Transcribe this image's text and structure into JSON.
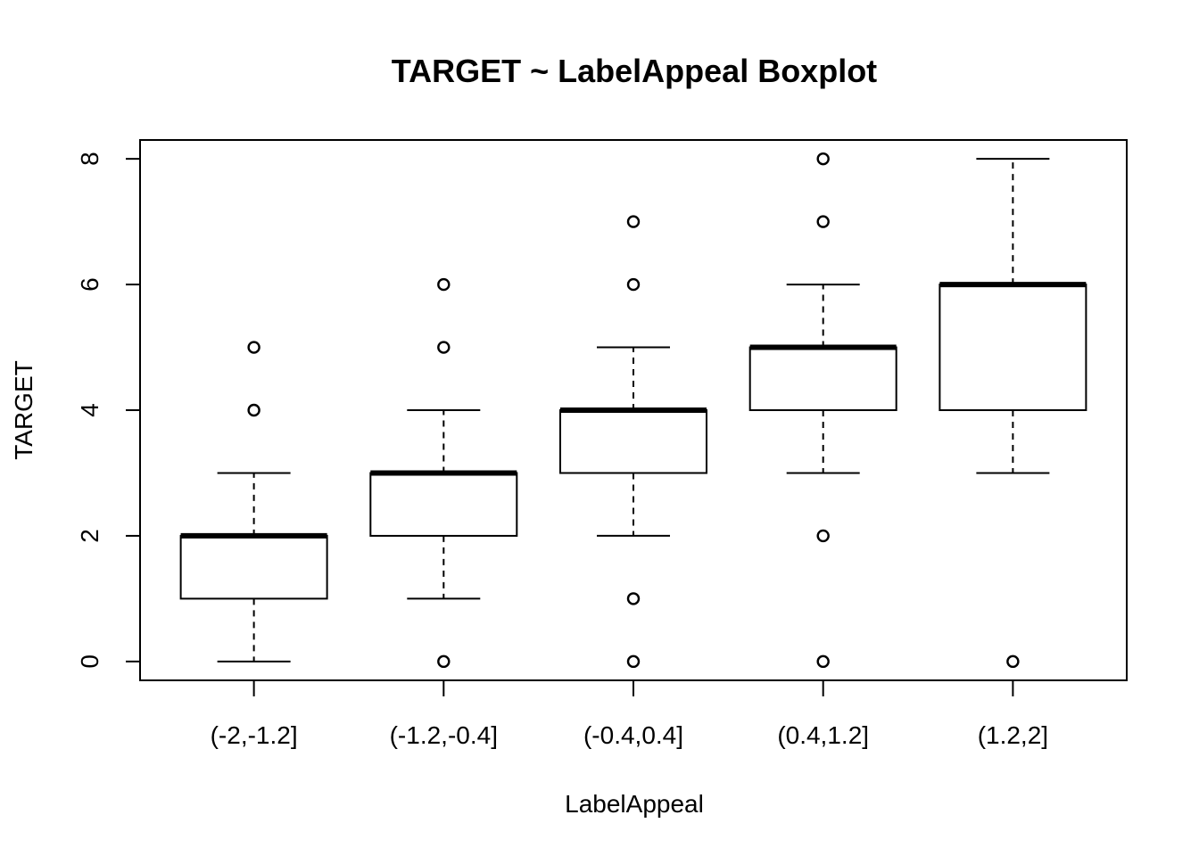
{
  "chart_data": {
    "type": "boxplot",
    "title": "TARGET ~ LabelAppeal Boxplot",
    "xlabel": "LabelAppeal",
    "ylabel": "TARGET",
    "ylim": [
      -0.3,
      8.3
    ],
    "yticks": [
      "0",
      "2",
      "4",
      "6",
      "8"
    ],
    "categories": [
      "(-2,-1.2]",
      "(-1.2,-0.4]",
      "(-0.4,0.4]",
      "(0.4,1.2]",
      "(1.2,2]"
    ],
    "boxes": [
      {
        "category": "(-2,-1.2]",
        "whisker_low": 0,
        "q1": 1,
        "median": 2,
        "q3": 2,
        "whisker_high": 3,
        "outliers": [
          4,
          5
        ]
      },
      {
        "category": "(-1.2,-0.4]",
        "whisker_low": 1,
        "q1": 2,
        "median": 3,
        "q3": 3,
        "whisker_high": 4,
        "outliers": [
          0,
          5,
          6
        ]
      },
      {
        "category": "(-0.4,0.4]",
        "whisker_low": 2,
        "q1": 3,
        "median": 4,
        "q3": 4,
        "whisker_high": 5,
        "outliers": [
          0,
          1,
          6,
          7
        ]
      },
      {
        "category": "(0.4,1.2]",
        "whisker_low": 3,
        "q1": 4,
        "median": 5,
        "q3": 5,
        "whisker_high": 6,
        "outliers": [
          0,
          2,
          7,
          8
        ]
      },
      {
        "category": "(1.2,2]",
        "whisker_low": 3,
        "q1": 4,
        "median": 6,
        "q3": 6,
        "whisker_high": 8,
        "outliers": [
          0
        ]
      }
    ],
    "grid": false,
    "legend": "none",
    "colors": {
      "stroke": "#000000",
      "box_fill": "#ffffff",
      "background": "#ffffff"
    }
  }
}
